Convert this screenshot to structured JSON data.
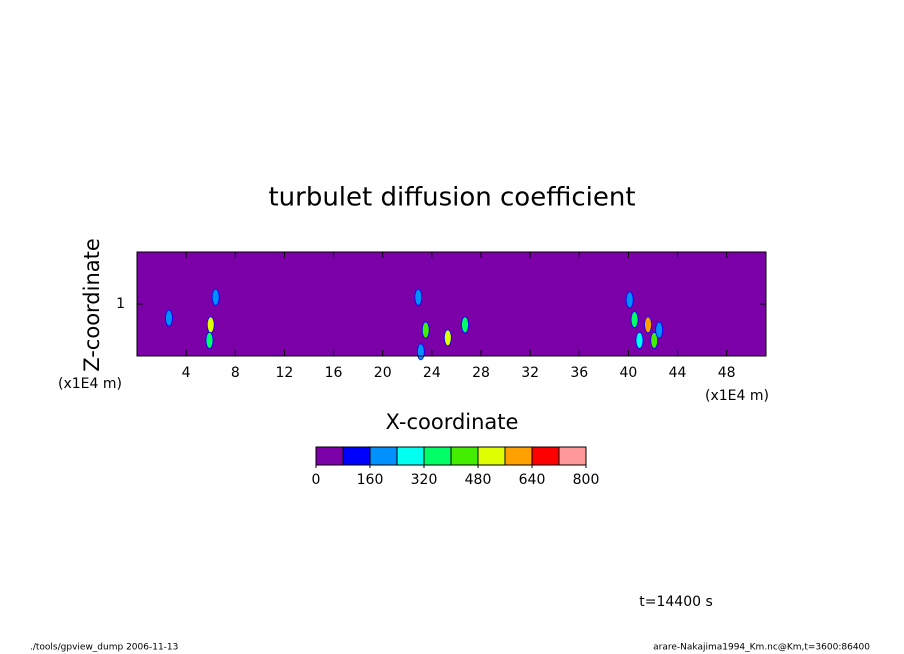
{
  "chart_data": {
    "type": "contour",
    "title": "turbulet diffusion coefficient",
    "xlabel": "X-coordinate",
    "ylabel": "Z-coordinate",
    "xunit": "(x1E4 m)",
    "yunit": "(x1E4 m)",
    "xlim": [
      0,
      51.2
    ],
    "ylim": [
      0,
      2
    ],
    "xticks": [
      4,
      8,
      12,
      16,
      20,
      24,
      28,
      32,
      36,
      40,
      44,
      48
    ],
    "yticks": [
      1
    ],
    "background_color": "#7b00a8",
    "blobs": {
      "x": [
        6.0,
        5.9,
        23.5,
        25.3,
        26.7,
        23.1,
        40.5,
        41.6,
        40.9,
        42.1,
        42.5,
        40.1,
        6.4,
        22.9,
        2.6
      ],
      "z": [
        0.6,
        0.3,
        0.5,
        0.35,
        0.6,
        0.08,
        0.7,
        0.6,
        0.3,
        0.3,
        0.5,
        1.08,
        1.13,
        1.13,
        0.73
      ],
      "values": [
        480,
        320,
        400,
        480,
        320,
        160,
        320,
        560,
        240,
        400,
        160,
        160,
        160,
        160,
        160
      ]
    },
    "colorbar": {
      "levels": [
        0,
        80,
        160,
        240,
        320,
        400,
        480,
        560,
        640,
        720,
        800
      ],
      "colors": [
        "#7b00a8",
        "#0000ff",
        "#0090ff",
        "#00ffee",
        "#00ff66",
        "#44ee00",
        "#ddff00",
        "#ffa000",
        "#ff0000",
        "#ff9999"
      ],
      "ticks": [
        0,
        160,
        320,
        480,
        640,
        800
      ]
    },
    "annotation": "t=14400 s",
    "footer_left": "./tools/gpview_dump  2006-11-13",
    "footer_right": "arare-Nakajima1994_Km.nc@Km,t=3600:86400"
  }
}
